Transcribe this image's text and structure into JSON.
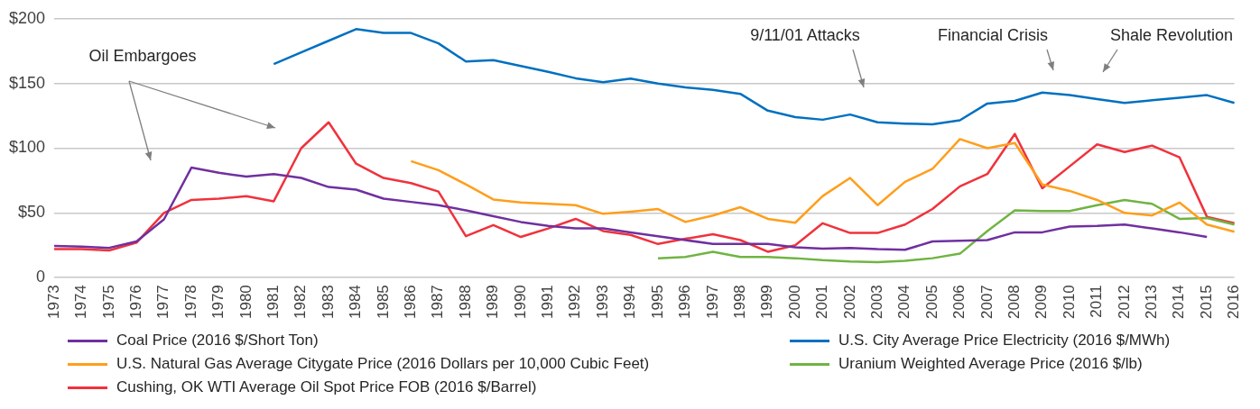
{
  "chart_data": {
    "type": "line",
    "categories": [
      "1973",
      "1974",
      "1975",
      "1976",
      "1977",
      "1978",
      "1979",
      "1980",
      "1981",
      "1982",
      "1983",
      "1984",
      "1985",
      "1986",
      "1987",
      "1988",
      "1989",
      "1990",
      "1991",
      "1992",
      "1993",
      "1994",
      "1995",
      "1996",
      "1997",
      "1998",
      "1999",
      "2000",
      "2001",
      "2002",
      "2003",
      "2004",
      "2005",
      "2006",
      "2007",
      "2008",
      "2009",
      "2010",
      "2011",
      "2012",
      "2013",
      "2014",
      "2015",
      "2016"
    ],
    "series": [
      {
        "name": "Coal Price (2016 $/Short Ton)",
        "color": "#7030a0",
        "values": [
          24.5,
          24,
          23,
          28,
          45,
          85,
          81,
          78,
          80,
          77,
          70,
          68,
          61,
          58.5,
          56,
          52,
          47.5,
          43,
          40,
          38,
          38,
          35,
          32,
          29,
          26,
          26,
          26,
          23.5,
          22.4,
          23,
          22,
          21.5,
          28,
          28.5,
          29,
          35,
          35,
          39.5,
          40,
          41,
          38,
          35,
          31.4,
          null
        ]
      },
      {
        "name": "U.S. City Average Price Electricity (2016 $/MWh)",
        "color": "#0070c0",
        "values": [
          null,
          null,
          null,
          null,
          null,
          null,
          null,
          null,
          165,
          174,
          183,
          192,
          189,
          189,
          181,
          167,
          168,
          163.5,
          159,
          154,
          151,
          153.7,
          150,
          147,
          145,
          142,
          129,
          124,
          122,
          126,
          120,
          119,
          118.4,
          121.6,
          134.5,
          136.5,
          143,
          141,
          138,
          135,
          137,
          139,
          141,
          135
        ]
      },
      {
        "name": "U.S. Natural Gas Average Citygate Price (2016 Dollars per 10,000 Cubic Feet)",
        "color": "#ff9e1b",
        "values": [
          null,
          null,
          null,
          null,
          null,
          null,
          null,
          null,
          null,
          null,
          null,
          null,
          null,
          90,
          83,
          72,
          60.4,
          58,
          57,
          56,
          49.3,
          51,
          53,
          43,
          48,
          54.4,
          45.4,
          42.4,
          63,
          77,
          56,
          74,
          84,
          107,
          100,
          104,
          72,
          67,
          60,
          50,
          48,
          58,
          41,
          35.5
        ]
      },
      {
        "name": "Uranium Weighted Average Price (2016 $/lb)",
        "color": "#70b443",
        "values": [
          null,
          null,
          null,
          null,
          null,
          null,
          null,
          null,
          null,
          null,
          null,
          null,
          null,
          null,
          null,
          null,
          null,
          null,
          null,
          null,
          null,
          null,
          15,
          16,
          20,
          16,
          16,
          15,
          13.5,
          12.5,
          12,
          13,
          15,
          18.5,
          36,
          52,
          51.5,
          51.4,
          56,
          60,
          57,
          45.4,
          46,
          41
        ]
      },
      {
        "name": "Cushing, OK WTI Average Oil Spot Price FOB (2016 $/Barrel)",
        "color": "#f0323c",
        "values": [
          22,
          22,
          21,
          27,
          50,
          60,
          61,
          63,
          59,
          100,
          120,
          88,
          77,
          73,
          66.5,
          32,
          40.6,
          31.4,
          38,
          45.4,
          36,
          33,
          26,
          30,
          33.5,
          29,
          20,
          25,
          42,
          34.5,
          34.5,
          41,
          53,
          70.5,
          80,
          111,
          69,
          86,
          103,
          97,
          102,
          93,
          47,
          42
        ]
      }
    ],
    "ylim": [
      0,
      200
    ],
    "yticks": [
      {
        "value": 0,
        "label": "0"
      },
      {
        "value": 50,
        "label": "$50"
      },
      {
        "value": 100,
        "label": "$100"
      },
      {
        "value": 150,
        "label": "$150"
      },
      {
        "value": 200,
        "label": "$200"
      }
    ],
    "grid": "y",
    "legend": "bottom",
    "marker": "none",
    "line_style": "solid",
    "annotations": [
      "Oil Embargoes",
      "9/11/01 Attacks",
      "Financial Crisis",
      "Shale Revolution"
    ]
  }
}
